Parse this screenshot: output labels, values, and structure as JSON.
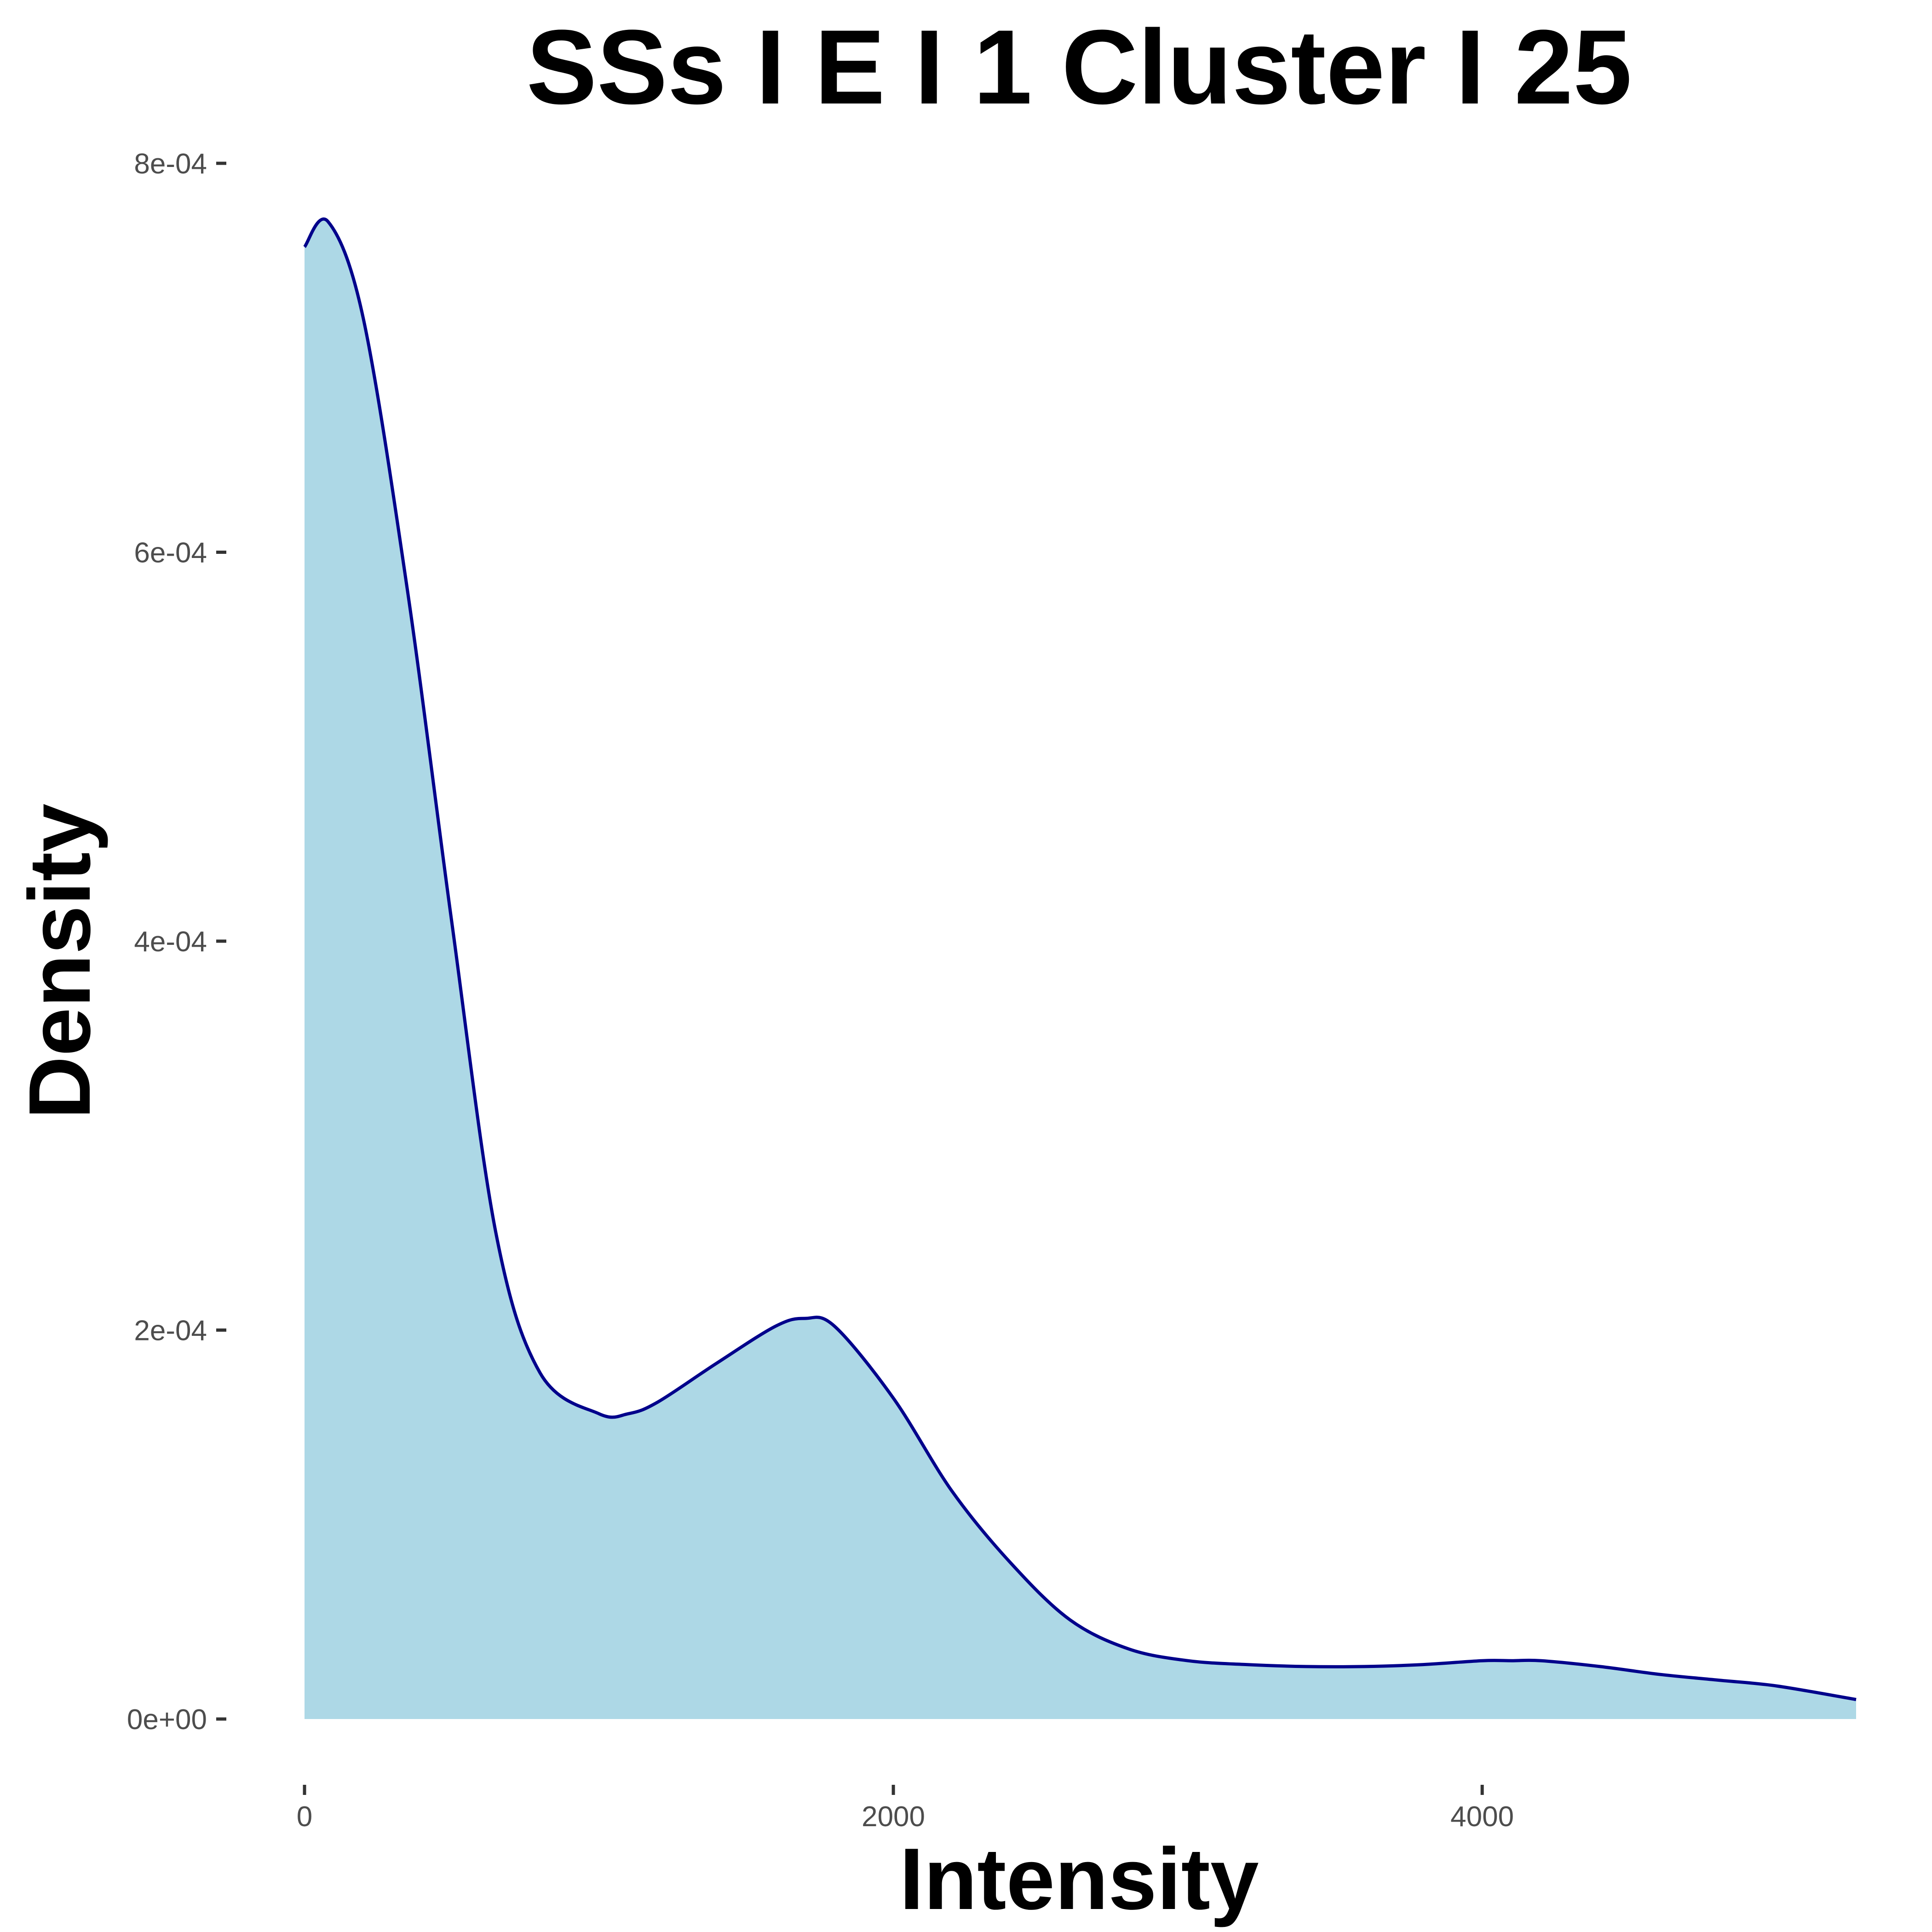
{
  "chart_data": {
    "type": "area",
    "title": "SSs I E I 1 Cluster I  25",
    "xlabel": "Intensity",
    "ylabel": "Density",
    "xlim": [
      0,
      5270
    ],
    "ylim": [
      0,
      0.0008
    ],
    "xticks": [
      0,
      2000,
      4000
    ],
    "xtick_labels": [
      "0",
      "2000",
      "4000"
    ],
    "yticks": [
      0,
      0.0002,
      0.0004,
      0.0006,
      0.0008
    ],
    "ytick_labels": [
      "0e+00",
      "2e-04",
      "4e-04",
      "6e-04",
      "8e-04"
    ],
    "grid": false,
    "legend": "none",
    "colors": {
      "fill": "#ADD8E6",
      "line": "#00008B"
    },
    "series": [
      {
        "x": [
          0,
          80,
          200,
          350,
          500,
          650,
          800,
          1000,
          1100,
          1200,
          1400,
          1600,
          1700,
          1800,
          2000,
          2200,
          2400,
          2600,
          2800,
          3000,
          3200,
          3400,
          3600,
          3800,
          4000,
          4100,
          4200,
          4400,
          4600,
          4800,
          5000,
          5270
        ],
        "y": [
          0.000757,
          0.00077,
          0.00072,
          0.00058,
          0.00041,
          0.00025,
          0.000178,
          0.000157,
          0.000157,
          0.000163,
          0.000183,
          0.000202,
          0.000206,
          0.000202,
          0.000165,
          0.000117,
          8e-05,
          5.1e-05,
          3.6e-05,
          3e-05,
          2.8e-05,
          2.7e-05,
          2.7e-05,
          2.8e-05,
          3e-05,
          3e-05,
          3e-05,
          2.7e-05,
          2.3e-05,
          2e-05,
          1.7e-05,
          1e-05
        ]
      }
    ]
  }
}
